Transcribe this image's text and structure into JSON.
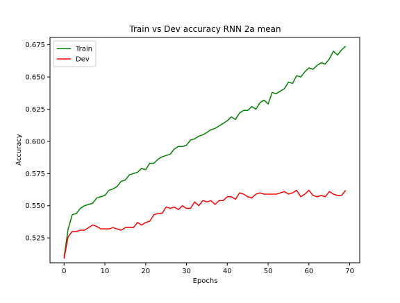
{
  "chart_data": {
    "type": "line",
    "title": "Train vs Dev accuracy RNN 2a mean",
    "xlabel": "Epochs",
    "ylabel": "Accuracy",
    "xlim": [
      -3.45,
      72.45
    ],
    "ylim": [
      0.5057,
      0.6807
    ],
    "xticks": [
      0,
      10,
      20,
      30,
      40,
      50,
      60,
      70
    ],
    "yticks": [
      0.525,
      0.55,
      0.575,
      0.6,
      0.625,
      0.65,
      0.675
    ],
    "ytick_labels": [
      "0.525",
      "0.550",
      "0.575",
      "0.600",
      "0.625",
      "0.650",
      "0.675"
    ],
    "grid": false,
    "legend_position": "top-left",
    "series": [
      {
        "name": "Train",
        "color": "#008000",
        "x": [
          0,
          1,
          2,
          3,
          4,
          5,
          6,
          7,
          8,
          9,
          10,
          11,
          12,
          13,
          14,
          15,
          16,
          17,
          18,
          19,
          20,
          21,
          22,
          23,
          24,
          25,
          26,
          27,
          28,
          29,
          30,
          31,
          32,
          33,
          34,
          35,
          36,
          37,
          38,
          39,
          40,
          41,
          42,
          43,
          44,
          45,
          46,
          47,
          48,
          49,
          50,
          51,
          52,
          53,
          54,
          55,
          56,
          57,
          58,
          59,
          60,
          61,
          62,
          63,
          64,
          65,
          66,
          67,
          68,
          69
        ],
        "y": [
          0.51,
          0.532,
          0.543,
          0.544,
          0.548,
          0.55,
          0.551,
          0.552,
          0.556,
          0.557,
          0.558,
          0.562,
          0.563,
          0.565,
          0.569,
          0.57,
          0.574,
          0.575,
          0.576,
          0.579,
          0.578,
          0.583,
          0.583,
          0.586,
          0.588,
          0.589,
          0.59,
          0.594,
          0.596,
          0.596,
          0.597,
          0.601,
          0.602,
          0.604,
          0.605,
          0.607,
          0.609,
          0.61,
          0.612,
          0.614,
          0.616,
          0.619,
          0.617,
          0.622,
          0.624,
          0.624,
          0.627,
          0.625,
          0.63,
          0.632,
          0.629,
          0.638,
          0.637,
          0.639,
          0.641,
          0.646,
          0.645,
          0.651,
          0.65,
          0.654,
          0.657,
          0.656,
          0.659,
          0.661,
          0.66,
          0.664,
          0.67,
          0.667,
          0.671,
          0.674
        ]
      },
      {
        "name": "Dev",
        "color": "#ff0000",
        "x": [
          0,
          1,
          2,
          3,
          4,
          5,
          6,
          7,
          8,
          9,
          10,
          11,
          12,
          13,
          14,
          15,
          16,
          17,
          18,
          19,
          20,
          21,
          22,
          23,
          24,
          25,
          26,
          27,
          28,
          29,
          30,
          31,
          32,
          33,
          34,
          35,
          36,
          37,
          38,
          39,
          40,
          41,
          42,
          43,
          44,
          45,
          46,
          47,
          48,
          49,
          50,
          51,
          52,
          53,
          54,
          55,
          56,
          57,
          58,
          59,
          60,
          61,
          62,
          63,
          64,
          65,
          66,
          67,
          68,
          69
        ],
        "y": [
          0.509,
          0.526,
          0.53,
          0.53,
          0.531,
          0.531,
          0.533,
          0.535,
          0.534,
          0.532,
          0.532,
          0.532,
          0.533,
          0.532,
          0.531,
          0.533,
          0.533,
          0.533,
          0.537,
          0.535,
          0.537,
          0.538,
          0.543,
          0.544,
          0.544,
          0.549,
          0.548,
          0.549,
          0.547,
          0.55,
          0.548,
          0.548,
          0.553,
          0.55,
          0.554,
          0.553,
          0.554,
          0.551,
          0.554,
          0.554,
          0.557,
          0.557,
          0.555,
          0.56,
          0.559,
          0.557,
          0.556,
          0.559,
          0.56,
          0.559,
          0.559,
          0.559,
          0.559,
          0.56,
          0.561,
          0.559,
          0.56,
          0.562,
          0.557,
          0.559,
          0.562,
          0.558,
          0.557,
          0.558,
          0.557,
          0.561,
          0.559,
          0.558,
          0.558,
          0.562
        ]
      }
    ]
  }
}
